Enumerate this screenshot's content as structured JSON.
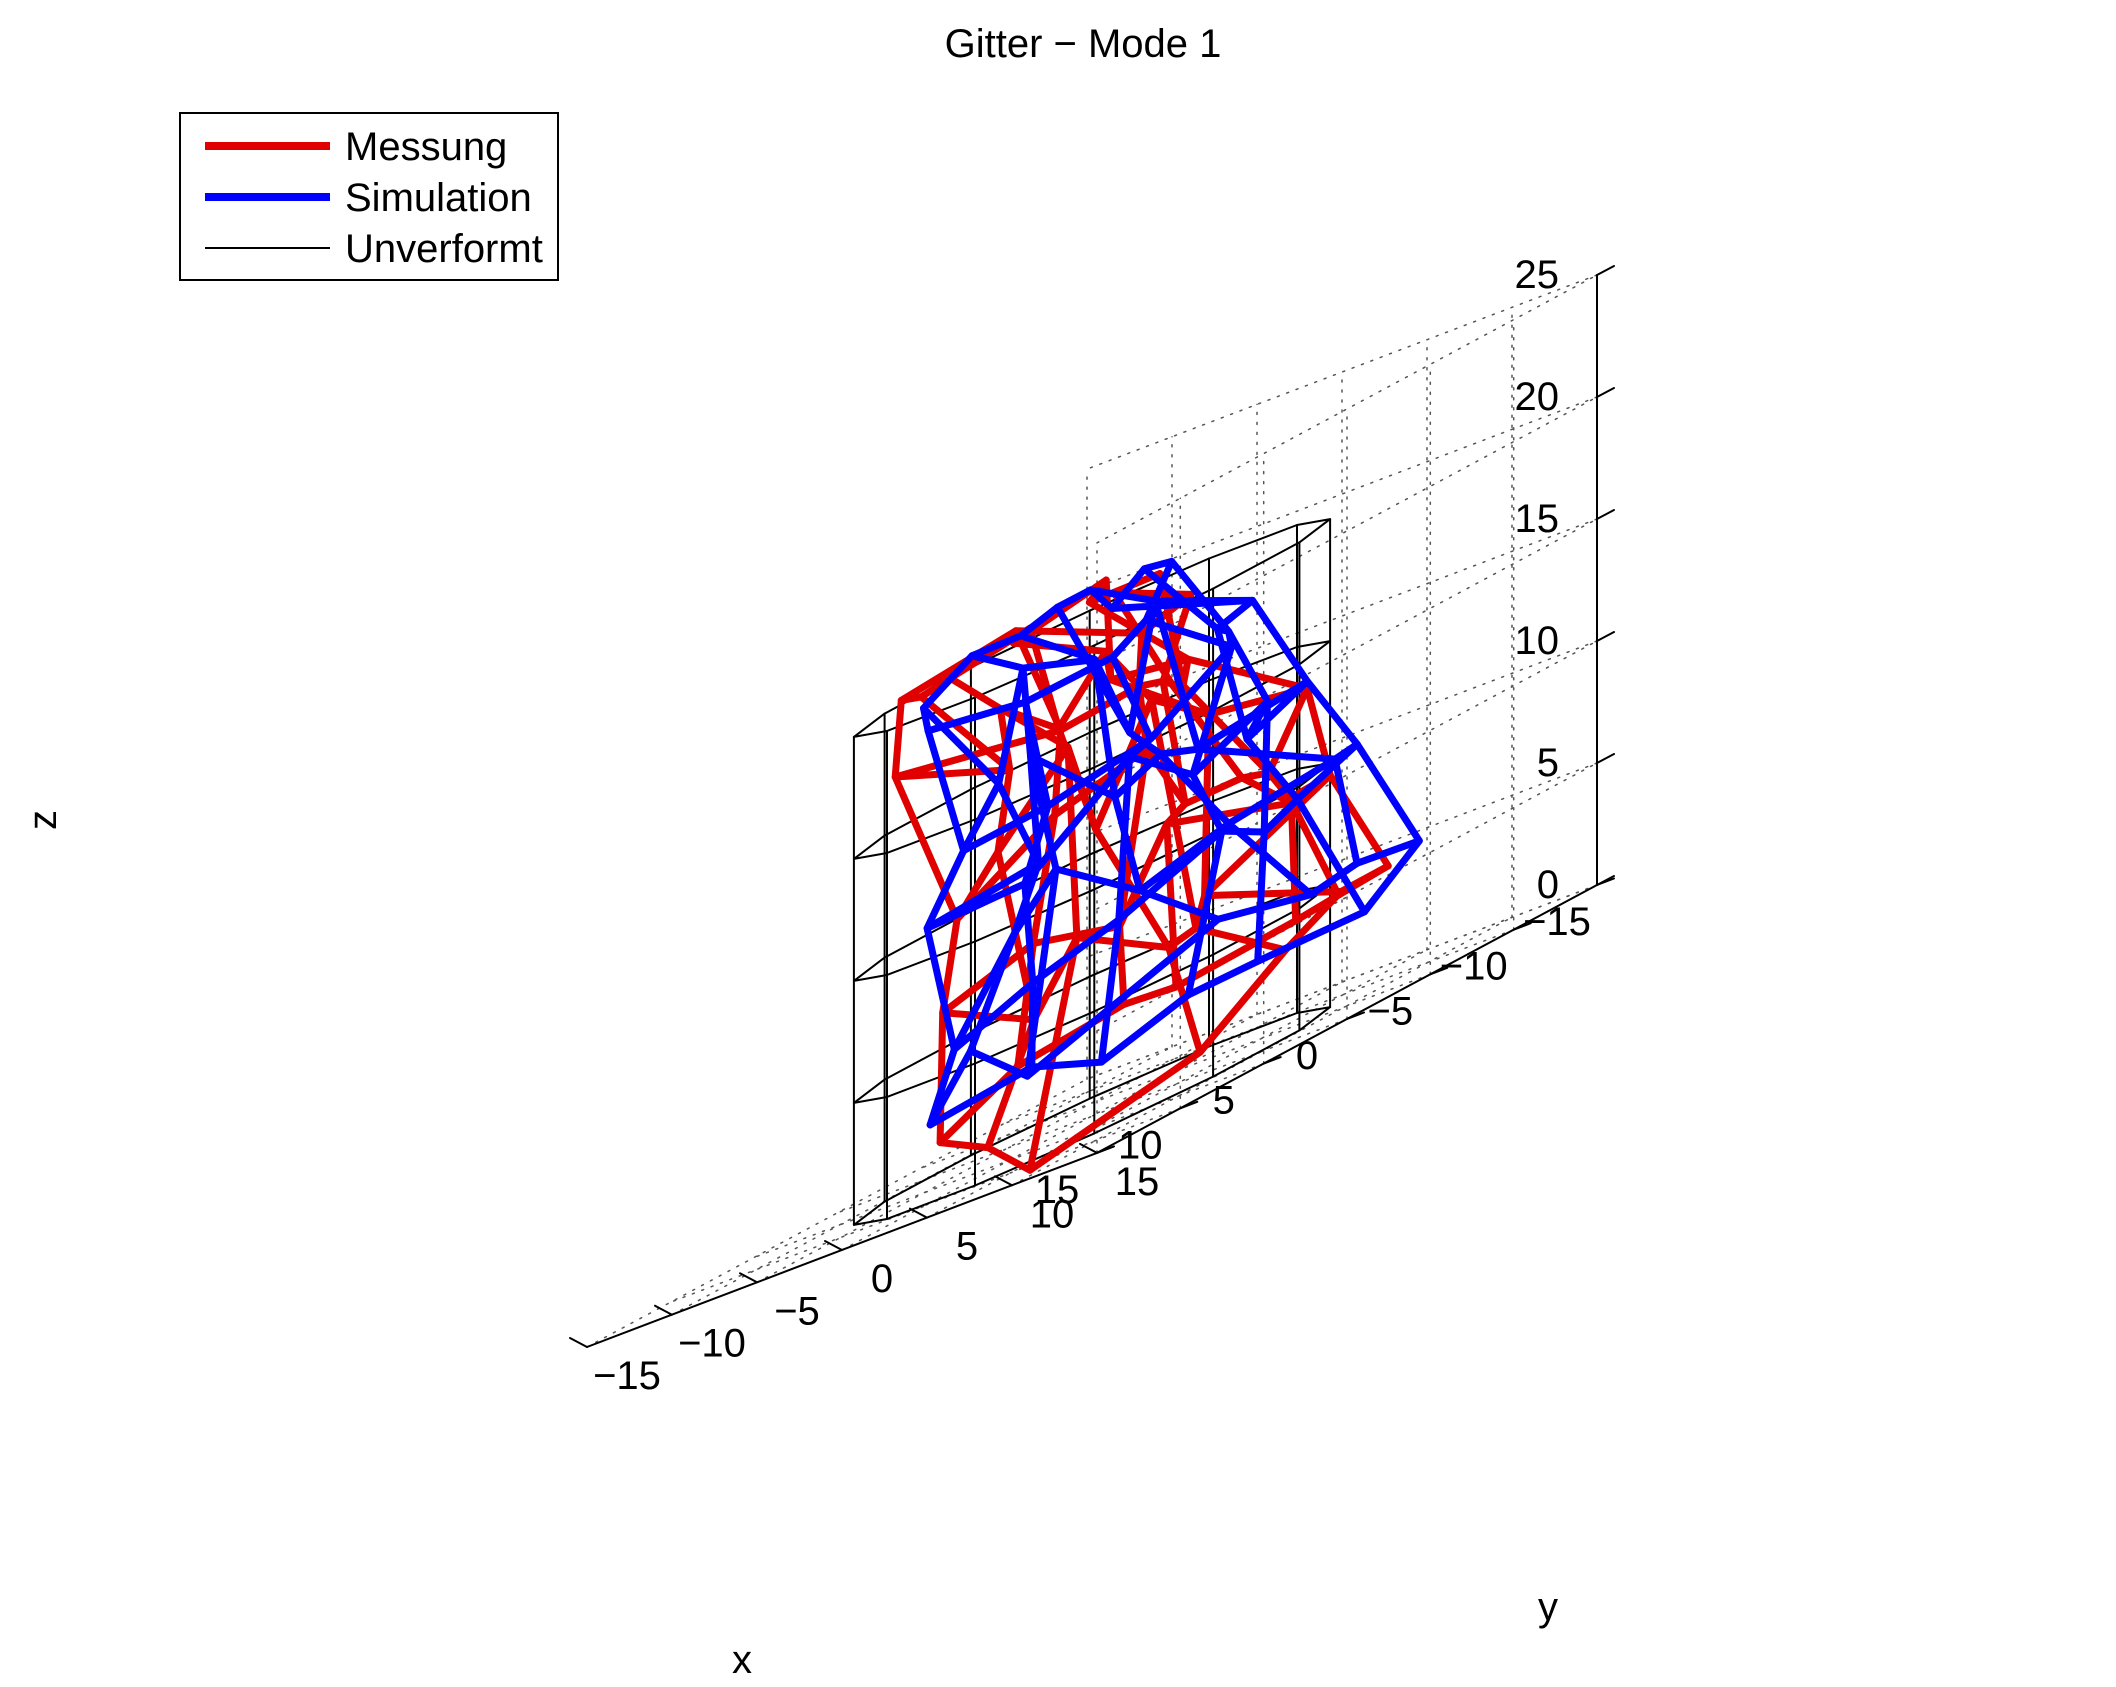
{
  "chart_data": {
    "type": "line",
    "subtype": "3d-wireframe",
    "title": "Gitter − Mode 1",
    "xlabel": "x",
    "ylabel": "y",
    "zlabel": "z",
    "xlim": [
      -15,
      15
    ],
    "ylim": [
      -15,
      15
    ],
    "zlim": [
      0,
      25
    ],
    "xticks": [
      -15,
      -10,
      -5,
      0,
      5,
      10,
      15
    ],
    "xtick_labels": [
      "−15",
      "−10",
      "−5",
      "0",
      "5",
      "10",
      "15"
    ],
    "yticks": [
      -15,
      -10,
      -5,
      0,
      5,
      10,
      15
    ],
    "ytick_labels": [
      "−15",
      "−10",
      "−5",
      "0",
      "5",
      "10",
      "15"
    ],
    "zticks": [
      0,
      5,
      10,
      15,
      20,
      25
    ],
    "ztick_labels": [
      "0",
      "5",
      "10",
      "15",
      "20",
      "25"
    ],
    "grid": true,
    "grid_style": "dotted",
    "legend_position": "top-left",
    "legend": [
      {
        "label": "Messung",
        "color": "#e00000",
        "line_weight": "thick"
      },
      {
        "label": "Simulation",
        "color": "#0000ff",
        "line_weight": "thick"
      },
      {
        "label": "Unverformt",
        "color": "#000000",
        "line_weight": "thin"
      }
    ],
    "undeformed": {
      "polygon_sides": 12,
      "radius": 10,
      "ring_z": [
        0,
        5,
        10,
        15,
        20
      ]
    },
    "series": [
      {
        "name": "Messung",
        "color": "#e00000",
        "rings_xyz": [
          [
            [
              9.99,
              0.86,
              2.34
            ],
            [
              9.48,
              4.93,
              4.2
            ],
            [
              7.31,
              9.05,
              4.85
            ],
            [
              5.32,
              10.16,
              4.54
            ],
            [
              0.71,
              12.68,
              4.9
            ],
            [
              -3.47,
              11.1,
              4.84
            ],
            [
              -8.21,
              9.37,
              4.76
            ],
            [
              -9.77,
              5.08,
              4.28
            ],
            [
              -12.12,
              -0.49,
              2.5
            ],
            [
              -10.88,
              -4.31,
              -0.22
            ],
            [
              -6.96,
              -10.48,
              -1.99
            ],
            [
              -4.54,
              -10.58,
              -0.15
            ]
          ],
          [
            [
              8.03,
              -0.91,
              7.41
            ],
            [
              7.48,
              3.88,
              8.78
            ],
            [
              4.41,
              5.95,
              7.81
            ],
            [
              5.52,
              9.81,
              11.39
            ],
            [
              -2.21,
              9.56,
              9.49
            ],
            [
              -3.8,
              7.91,
              9.53
            ],
            [
              -8.25,
              5.92,
              9.38
            ],
            [
              -6.1,
              0.64,
              6.63
            ],
            [
              -9.8,
              -3.5,
              5.04
            ],
            [
              -10.08,
              -5.37,
              4.64
            ],
            [
              -9.11,
              -9.82,
              6.58
            ],
            [
              -4.35,
              -7.67,
              4.39
            ]
          ],
          [
            [
              5.01,
              -3.02,
              10.7
            ],
            [
              5.09,
              2.8,
              13.45
            ],
            [
              3.78,
              6.93,
              14.59
            ],
            [
              -0.76,
              4.74,
              11.26
            ],
            [
              -3.3,
              5.58,
              11.17
            ],
            [
              -7.4,
              3.15,
              10.52
            ],
            [
              -11.54,
              1.34,
              12.95
            ],
            [
              -11.07,
              -3.99,
              13.46
            ],
            [
              -11.57,
              -7.84,
              14.91
            ],
            [
              -6.05,
              -5.71,
              11.04
            ],
            [
              -8.48,
              -9.73,
              14.6
            ],
            [
              -2.49,
              -7.97,
              12.03
            ]
          ],
          [
            [
              5.93,
              -5.76,
              17.59
            ],
            [
              2.84,
              0.94,
              16.6
            ],
            [
              1.52,
              4.26,
              17.04
            ],
            [
              -1.11,
              3.09,
              16.59
            ],
            [
              -3.35,
              1.41,
              16.1
            ],
            [
              -6.77,
              -1.28,
              15.5
            ],
            [
              -9.19,
              -3.36,
              16.25
            ],
            [
              -7.51,
              -6.26,
              16.79
            ],
            [
              -10.29,
              -9.28,
              17.74
            ],
            [
              -4.94,
              -6.81,
              15.87
            ],
            [
              -4.2,
              -9.52,
              17.69
            ],
            [
              -0.42,
              -5.25,
              15.43
            ]
          ],
          [
            [
              1.62,
              -9.63,
              20.18
            ],
            [
              -0.73,
              -5.19,
              21.0
            ],
            [
              -0.84,
              2.11,
              18.92
            ],
            [
              -5.31,
              0.61,
              19.27
            ],
            [
              -5.31,
              -3.92,
              20.55
            ],
            [
              -8.92,
              -4.75,
              20.23
            ],
            [
              -8.28,
              -8.27,
              20.21
            ],
            [
              -8.46,
              -7.46,
              20.85
            ],
            [
              -4.45,
              -8.98,
              20.13
            ],
            [
              -4.72,
              -8.27,
              20.46
            ],
            [
              -0.94,
              -9.25,
              20.05
            ],
            [
              1.31,
              -8.76,
              19.98
            ]
          ]
        ]
      },
      {
        "name": "Simulation",
        "color": "#0000ff",
        "rings_xyz": [
          [
            [
              11.12,
              1.38,
              3.34
            ],
            [
              10.37,
              6.63,
              4.04
            ],
            [
              8.0,
              8.4,
              2.91
            ],
            [
              4.85,
              10.42,
              3.97
            ],
            [
              1.94,
              11.65,
              3.96
            ],
            [
              -3.78,
              12.32,
              3.72
            ],
            [
              -9.76,
              9.68,
              5.14
            ],
            [
              -10.9,
              4.9,
              5.07
            ],
            [
              -12.5,
              0.63,
              4.33
            ],
            [
              -12.11,
              -4.46,
              4.81
            ],
            [
              -6.43,
              -10.11,
              1.96
            ],
            [
              -4.71,
              -11.76,
              4.06
            ]
          ],
          [
            [
              7.13,
              -1.11,
              5.63
            ],
            [
              8.18,
              4.54,
              7.25
            ],
            [
              6.95,
              8.39,
              8.36
            ],
            [
              3.96,
              11.52,
              10.07
            ],
            [
              -0.61,
              9.53,
              8.89
            ],
            [
              -3.11,
              9.04,
              9.45
            ],
            [
              -6.82,
              8.91,
              10.38
            ],
            [
              -9.7,
              4.78,
              9.81
            ],
            [
              -10.78,
              -2.53,
              8.71
            ],
            [
              -8.11,
              -5.13,
              7.63
            ],
            [
              -8.52,
              -10.47,
              9.78
            ],
            [
              -4.5,
              -8.97,
              8.22
            ]
          ],
          [
            [
              6.55,
              -3.28,
              10.96
            ],
            [
              5.59,
              1.53,
              11.16
            ],
            [
              5.35,
              7.46,
              14.7
            ],
            [
              -0.13,
              5.8,
              12.4
            ],
            [
              -3.47,
              6.92,
              13.9
            ],
            [
              -5.38,
              3.84,
              12.46
            ],
            [
              -10.08,
              2.78,
              13.39
            ],
            [
              -8.48,
              -2.06,
              12.48
            ],
            [
              -9.01,
              -4.8,
              12.81
            ],
            [
              -7.26,
              -5.77,
              11.95
            ],
            [
              -7.08,
              -10.56,
              14.96
            ],
            [
              -3.07,
              -6.16,
              10.86
            ]
          ],
          [
            [
              4.56,
              -3.08,
              13.36
            ],
            [
              2.91,
              0.26,
              13.7
            ],
            [
              1.08,
              4.52,
              14.66
            ],
            [
              -2.08,
              6.17,
              16.84
            ],
            [
              -3.16,
              4.94,
              17.39
            ],
            [
              -4.16,
              3.3,
              17.57
            ],
            [
              -9.87,
              -0.23,
              17.58
            ],
            [
              -9.13,
              -5.24,
              19.16
            ],
            [
              -5.34,
              -3.02,
              14.56
            ],
            [
              -7.42,
              -7.1,
              17.87
            ],
            [
              -5.6,
              -9.55,
              18.84
            ],
            [
              0.7,
              -4.8,
              15.15
            ]
          ],
          [
            [
              3.14,
              -6.56,
              18.67
            ],
            [
              0.66,
              -3.27,
              18.07
            ],
            [
              -1.28,
              -0.04,
              18.35
            ],
            [
              -3.61,
              -0.35,
              19.1
            ],
            [
              -5.71,
              -0.91,
              20.88
            ],
            [
              -7.48,
              -4.26,
              20.82
            ],
            [
              -7.77,
              -6.43,
              19.66
            ],
            [
              -8.22,
              -8.14,
              20.71
            ],
            [
              -6.06,
              -7.98,
              20.75
            ],
            [
              -4.05,
              -8.16,
              20.36
            ],
            [
              -2.03,
              -9.05,
              20.52
            ],
            [
              1.58,
              -8.36,
              19.51
            ]
          ]
        ]
      }
    ]
  }
}
